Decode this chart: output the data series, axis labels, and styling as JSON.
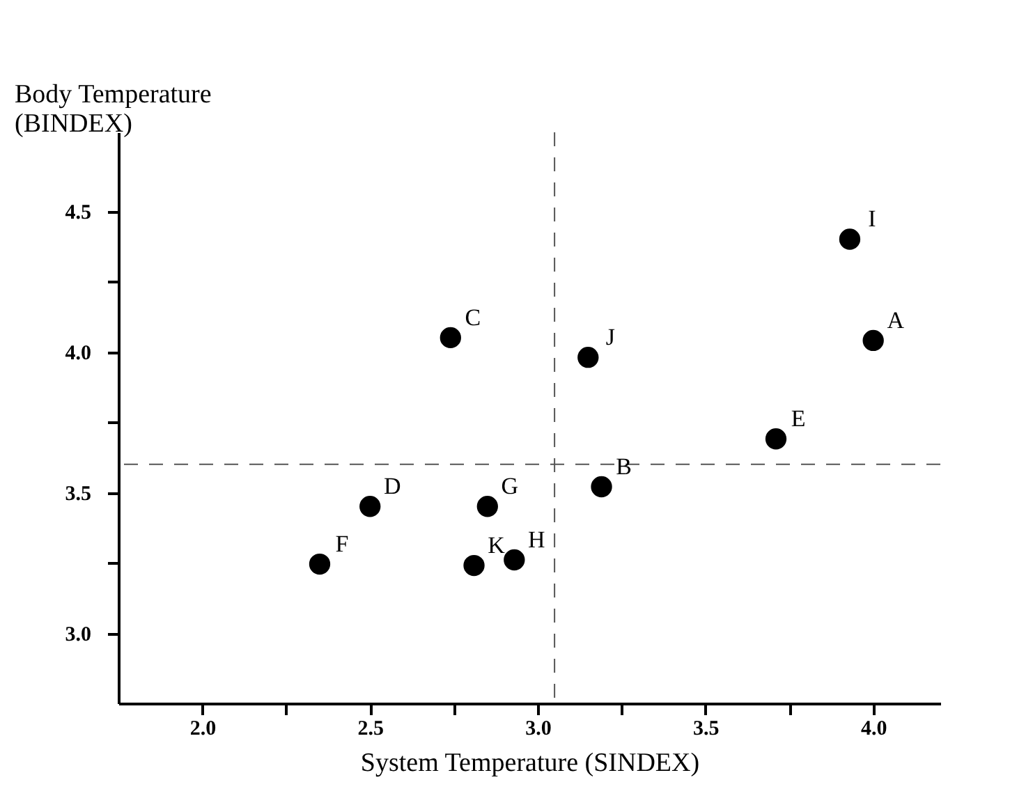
{
  "chart_data": {
    "type": "scatter",
    "xlabel": "System Temperature (SINDEX)",
    "ylabel": "Body Temperature (BINDEX)",
    "x": [
      4.0,
      3.19,
      2.74,
      2.5,
      3.71,
      2.35,
      2.85,
      2.93,
      3.93,
      3.15,
      2.81
    ],
    "series": [
      {
        "color": "#000000",
        "values": [
          4.04,
          3.52,
          4.05,
          3.45,
          3.69,
          3.245,
          3.45,
          3.26,
          4.4,
          3.98,
          3.24
        ]
      }
    ],
    "annotations": [
      {
        "text": "A",
        "x": 4.0,
        "y": 4.04
      },
      {
        "text": "B",
        "x": 3.19,
        "y": 3.52
      },
      {
        "text": "C",
        "x": 2.74,
        "y": 4.05
      },
      {
        "text": "D",
        "x": 2.5,
        "y": 3.45
      },
      {
        "text": "E",
        "x": 3.71,
        "y": 3.69
      },
      {
        "text": "F",
        "x": 2.35,
        "y": 3.245
      },
      {
        "text": "G",
        "x": 2.85,
        "y": 3.45
      },
      {
        "text": "H",
        "x": 2.93,
        "y": 3.26
      },
      {
        "text": "I",
        "x": 3.93,
        "y": 4.4
      },
      {
        "text": "J",
        "x": 3.15,
        "y": 3.98
      },
      {
        "text": "K",
        "x": 2.81,
        "y": 3.24
      }
    ],
    "xlim": [
      1.75,
      4.2
    ],
    "ylim": [
      2.75,
      4.78
    ],
    "xticks": [
      {
        "value": 2,
        "label": "2.0"
      },
      {
        "value": 2.25,
        "label": null
      },
      2.5,
      {
        "value": 2.75,
        "label": null
      },
      {
        "value": 3,
        "label": "3.0"
      },
      {
        "value": 3.25,
        "label": null
      },
      3.5,
      {
        "value": 3.75,
        "label": null
      },
      {
        "value": 4,
        "label": "4.0"
      }
    ],
    "yticks": [
      {
        "value": 3,
        "label": "3.0"
      },
      {
        "value": 3.25,
        "label": null
      },
      3.5,
      {
        "value": 3.75,
        "label": null
      },
      {
        "value": 4,
        "label": "4.0"
      },
      {
        "value": 4.25,
        "label": null
      },
      4.5
    ],
    "ref_lines": [
      {
        "axis": "x",
        "value": 3.05,
        "line_style": "dashed",
        "color": "#555555"
      },
      {
        "axis": "y",
        "value": 3.6,
        "line_style": "dashed",
        "color": "#555555"
      }
    ],
    "marker": "circle",
    "grid": false
  }
}
